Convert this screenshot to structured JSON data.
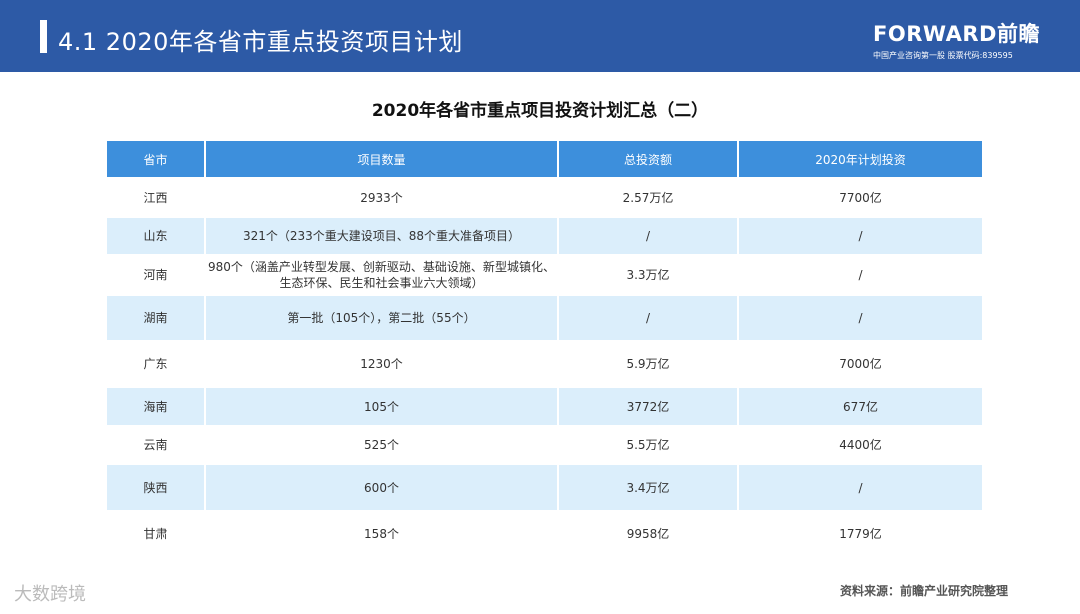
{
  "header": {
    "title": "4.1  2020年各省市重点投资项目计划",
    "brand": "FORWARD前瞻",
    "brand_sub": "中国产业咨询第一股  股票代码:839595"
  },
  "table": {
    "title": "2020年各省市重点项目投资计划汇总（二）",
    "columns": [
      "省市",
      "项目数量",
      "总投资额",
      "2020年计划投资"
    ],
    "rows": [
      [
        "江西",
        "2933个",
        "2.57万亿",
        "7700亿"
      ],
      [
        "山东",
        "321个（233个重大建设项目、88个重大准备项目）",
        "/",
        "/"
      ],
      [
        "河南",
        [
          "980个（涵盖产业转型发展、创新驱动、基础设施、新型城镇化、",
          "生态环保、民生和社会事业六大领域）"
        ],
        "3.3万亿",
        "/"
      ],
      [
        "湖南",
        "第一批（105个），第二批（55个）",
        "/",
        "/"
      ],
      [
        "广东",
        "1230个",
        "5.9万亿",
        "7000亿"
      ],
      [
        "海南",
        "105个",
        "3772亿",
        "677亿"
      ],
      [
        "云南",
        "525个",
        "5.5万亿",
        "4400亿"
      ],
      [
        "陕西",
        "600个",
        "3.4万亿",
        "/"
      ],
      [
        "甘肃",
        "158个",
        "9958亿",
        "1779亿"
      ]
    ]
  },
  "source": "资料来源：前瞻产业研究院整理",
  "watermark": "大数跨境"
}
